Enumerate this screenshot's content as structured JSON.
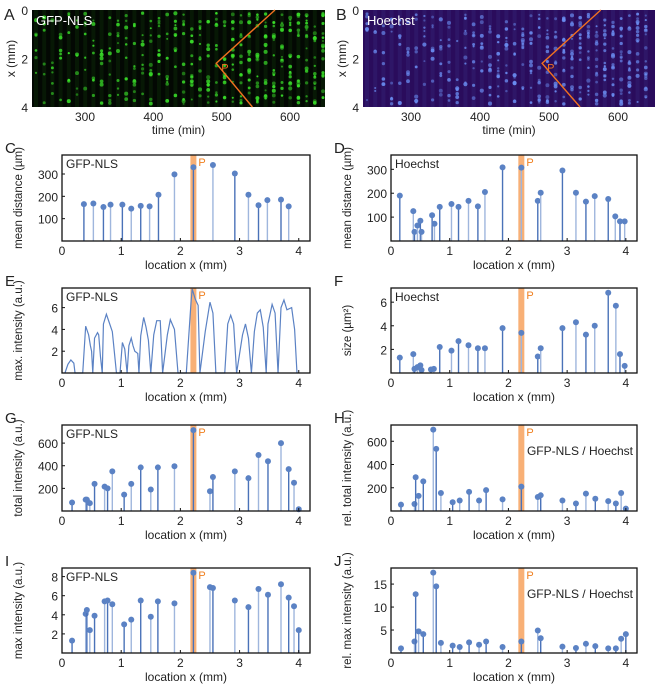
{
  "colors": {
    "stem": "#4a72b8",
    "stem_light": "#9fb6dd",
    "marker": "#5b82c4",
    "p_band": "#f7a25e",
    "p_text": "#f08020",
    "line": "#5b82c4"
  },
  "images": [
    {
      "panel": "A",
      "label": "GFP-NLS",
      "ylabel": "x (mm)",
      "xlabel": "time (min)",
      "xticks": [
        300,
        400,
        500,
        600
      ],
      "yticks": [
        0,
        2,
        4
      ],
      "time_range": [
        222,
        652
      ],
      "x_range": [
        0,
        4
      ],
      "background": "#030803",
      "dot_color": "#3adf2a",
      "p_label": "P",
      "trajectory": [
        [
          578,
          0
        ],
        [
          492,
          2.2
        ],
        [
          545,
          4
        ]
      ]
    },
    {
      "panel": "B",
      "label": "Hoechst",
      "ylabel": "x (mm)",
      "xlabel": "time (min)",
      "xticks": [
        300,
        400,
        500,
        600
      ],
      "yticks": [
        0,
        2,
        4
      ],
      "time_range": [
        228,
        652
      ],
      "x_range": [
        0,
        4
      ],
      "background": "#2a0c5c",
      "dot_color": "#6a8cf0",
      "p_label": "P",
      "trajectory": [
        [
          575,
          0
        ],
        [
          490,
          2.2
        ],
        [
          545,
          4
        ]
      ]
    }
  ],
  "chart_data": [
    {
      "panel": "C",
      "type": "stem",
      "label": "GFP-NLS",
      "ylabel": "mean distance (µm)",
      "xlabel": "location x (mm)",
      "xlim": [
        0,
        4.19
      ],
      "ylim": [
        0,
        385
      ],
      "xticks": [
        0,
        1,
        2,
        3,
        4
      ],
      "yticks": [
        100,
        200,
        300
      ],
      "p_label": "P",
      "p_x": 2.22,
      "x": [
        0.37,
        0.53,
        0.7,
        0.82,
        1.02,
        1.17,
        1.33,
        1.48,
        1.63,
        1.9,
        2.22,
        2.55,
        2.92,
        3.15,
        3.32,
        3.47,
        3.7,
        3.83
      ],
      "y": [
        165,
        168,
        152,
        163,
        163,
        145,
        157,
        155,
        207,
        298,
        330,
        340,
        302,
        207,
        160,
        183,
        185,
        155
      ]
    },
    {
      "panel": "D",
      "type": "stem",
      "label": "Hoechst",
      "ylabel": "mean distance (µm)",
      "xlabel": "location x (mm)",
      "xlim": [
        0,
        4.19
      ],
      "ylim": [
        0,
        360
      ],
      "xticks": [
        0,
        1,
        2,
        3,
        4
      ],
      "yticks": [
        100,
        200,
        300
      ],
      "p_label": "P",
      "p_x": 2.22,
      "x": [
        0.15,
        0.38,
        0.4,
        0.45,
        0.5,
        0.52,
        0.7,
        0.74,
        0.83,
        1.03,
        1.15,
        1.32,
        1.48,
        1.6,
        1.9,
        2.22,
        2.5,
        2.55,
        2.92,
        3.15,
        3.32,
        3.47,
        3.7,
        3.82,
        3.9,
        3.98
      ],
      "y": [
        190,
        125,
        38,
        65,
        85,
        38,
        108,
        72,
        143,
        155,
        143,
        168,
        145,
        205,
        308,
        307,
        168,
        202,
        295,
        202,
        165,
        188,
        176,
        103,
        82,
        82
      ]
    },
    {
      "panel": "E",
      "type": "line",
      "label": "GFP-NLS",
      "ylabel": "max. intensity (a.u.)",
      "xlabel": "location x (mm)",
      "xlim": [
        0,
        4.19
      ],
      "ylim": [
        0,
        7.8
      ],
      "xticks": [
        0,
        1,
        2,
        3,
        4
      ],
      "yticks": [
        2,
        4,
        6
      ],
      "p_label": "P",
      "p_x": 2.22,
      "x": [
        0.05,
        0.1,
        0.15,
        0.2,
        0.22,
        0.35,
        0.4,
        0.45,
        0.48,
        0.5,
        0.52,
        0.55,
        0.6,
        0.62,
        0.65,
        0.68,
        0.7,
        0.75,
        0.8,
        0.85,
        0.92,
        0.98,
        1.02,
        1.06,
        1.1,
        1.13,
        1.17,
        1.2,
        1.23,
        1.28,
        1.3,
        1.33,
        1.38,
        1.42,
        1.46,
        1.5,
        1.55,
        1.6,
        1.66,
        1.7,
        1.78,
        1.83,
        1.9,
        1.96,
        2.1,
        2.18,
        2.2,
        2.25,
        2.3,
        2.33,
        2.42,
        2.5,
        2.55,
        2.6,
        2.75,
        2.8,
        2.85,
        2.9,
        2.95,
        3.05,
        3.1,
        3.15,
        3.2,
        3.25,
        3.3,
        3.35,
        3.4,
        3.45,
        3.48,
        3.55,
        3.6,
        3.65,
        3.7,
        3.75,
        3.8,
        3.88,
        3.93,
        3.97
      ],
      "y": [
        0,
        0.8,
        1.2,
        0.9,
        0,
        0,
        4.3,
        3.5,
        2.5,
        2.0,
        0,
        3.2,
        3.7,
        3.5,
        1.5,
        0,
        4.5,
        5.4,
        4.6,
        3.8,
        0,
        0,
        2.8,
        2.2,
        0,
        2.5,
        3.2,
        2.5,
        2.0,
        1.8,
        0,
        3.4,
        5.1,
        4.2,
        3.0,
        0,
        3.5,
        4.8,
        4.8,
        0,
        3.5,
        4.9,
        4.0,
        0,
        0,
        6.5,
        7.7,
        6.8,
        6.2,
        0,
        3.8,
        6.5,
        5.5,
        0,
        0,
        4.5,
        5.3,
        4.5,
        0,
        3.5,
        4.5,
        3.2,
        0,
        3.8,
        5.5,
        5.8,
        4.2,
        0,
        4.5,
        6.3,
        5.5,
        0,
        6.0,
        6.7,
        5.8,
        6.0,
        4.0,
        0
      ]
    },
    {
      "panel": "F",
      "type": "stem",
      "label": "Hoechst",
      "ylabel": "size (µm²)",
      "xlabel": "location x (mm)",
      "xlim": [
        0,
        4.19
      ],
      "ylim": [
        0,
        7.2
      ],
      "xticks": [
        0,
        1,
        2,
        3,
        4
      ],
      "yticks": [
        2,
        4,
        6
      ],
      "p_label": "P",
      "p_x": 2.22,
      "x": [
        0.15,
        0.38,
        0.4,
        0.45,
        0.5,
        0.52,
        0.68,
        0.73,
        0.83,
        1.03,
        1.15,
        1.32,
        1.48,
        1.6,
        1.9,
        2.22,
        2.5,
        2.55,
        2.92,
        3.15,
        3.32,
        3.47,
        3.7,
        3.83,
        3.9,
        3.98
      ],
      "y": [
        1.3,
        1.6,
        0.35,
        0.5,
        0.65,
        0.25,
        0.3,
        0.35,
        2.2,
        1.9,
        2.7,
        2.35,
        2.1,
        2.1,
        3.8,
        3.4,
        1.4,
        2.1,
        3.8,
        4.3,
        3.25,
        4.0,
        6.8,
        5.7,
        1.6,
        0.6
      ]
    },
    {
      "panel": "G",
      "type": "stem",
      "label": "GFP-NLS",
      "ylabel": "total intensity (a.u.)",
      "xlabel": "location x (mm)",
      "xlim": [
        0,
        4.19
      ],
      "ylim": [
        0,
        760
      ],
      "xticks": [
        0,
        1,
        2,
        3,
        4
      ],
      "yticks": [
        200,
        400,
        600
      ],
      "p_label": "P",
      "p_x": 2.22,
      "x": [
        0.17,
        0.4,
        0.42,
        0.47,
        0.55,
        0.72,
        0.77,
        0.85,
        1.05,
        1.17,
        1.33,
        1.5,
        1.62,
        1.9,
        2.22,
        2.5,
        2.55,
        2.92,
        3.15,
        3.32,
        3.48,
        3.7,
        3.83,
        3.92,
        4.0
      ],
      "y": [
        75,
        100,
        100,
        70,
        240,
        215,
        200,
        350,
        145,
        240,
        385,
        190,
        385,
        395,
        715,
        175,
        300,
        350,
        290,
        495,
        440,
        600,
        370,
        250,
        15
      ]
    },
    {
      "panel": "H",
      "type": "stem",
      "label": "GFP-NLS / Hoechst",
      "ylabel": "rel. total intensity (a.u.)",
      "xlabel": "location x (mm)",
      "xlim": [
        0,
        4.19
      ],
      "ylim": [
        0,
        740
      ],
      "xticks": [
        0,
        1,
        2,
        3,
        4
      ],
      "yticks": [
        200,
        400,
        600
      ],
      "p_label": "P",
      "p_x": 2.22,
      "x": [
        0.17,
        0.4,
        0.42,
        0.47,
        0.55,
        0.72,
        0.77,
        0.85,
        1.05,
        1.17,
        1.33,
        1.5,
        1.62,
        1.9,
        2.22,
        2.5,
        2.55,
        2.92,
        3.15,
        3.32,
        3.48,
        3.7,
        3.83,
        3.92,
        4.0
      ],
      "y": [
        55,
        60,
        290,
        130,
        255,
        700,
        535,
        155,
        75,
        90,
        165,
        90,
        180,
        100,
        210,
        120,
        135,
        90,
        65,
        150,
        105,
        85,
        65,
        155,
        20
      ]
    },
    {
      "panel": "I",
      "type": "stem",
      "label": "GFP-NLS",
      "ylabel": "max intensity (a.u.)",
      "xlabel": "location x (mm)",
      "xlim": [
        0,
        4.19
      ],
      "ylim": [
        0,
        8.9
      ],
      "xticks": [
        0,
        1,
        2,
        3,
        4
      ],
      "yticks": [
        2,
        4,
        6,
        8
      ],
      "p_label": "P",
      "p_x": 2.22,
      "x": [
        0.17,
        0.4,
        0.42,
        0.47,
        0.55,
        0.72,
        0.77,
        0.85,
        1.05,
        1.17,
        1.33,
        1.5,
        1.62,
        1.9,
        2.22,
        2.5,
        2.55,
        2.92,
        3.15,
        3.32,
        3.48,
        3.7,
        3.83,
        3.92,
        4.0
      ],
      "y": [
        1.3,
        4.1,
        4.5,
        2.4,
        3.9,
        5.4,
        5.5,
        5.1,
        3.0,
        3.5,
        5.5,
        3.8,
        5.4,
        5.2,
        8.4,
        6.9,
        6.8,
        5.5,
        4.8,
        6.7,
        6.1,
        7.2,
        5.8,
        4.9,
        2.4
      ]
    },
    {
      "panel": "J",
      "type": "stem",
      "label": "GFP-NLS / Hoechst",
      "ylabel": "rel. max intensity (a.u.)",
      "xlabel": "location x (mm)",
      "xlim": [
        0,
        4.19
      ],
      "ylim": [
        0,
        18.5
      ],
      "xticks": [
        0,
        1,
        2,
        3,
        4
      ],
      "yticks": [
        5,
        10,
        15
      ],
      "p_label": "P",
      "p_x": 2.22,
      "x": [
        0.17,
        0.4,
        0.42,
        0.47,
        0.55,
        0.72,
        0.77,
        0.85,
        1.05,
        1.17,
        1.33,
        1.5,
        1.62,
        1.9,
        2.22,
        2.5,
        2.55,
        2.92,
        3.15,
        3.32,
        3.48,
        3.7,
        3.83,
        3.92,
        4.0
      ],
      "y": [
        1.0,
        2.5,
        12.8,
        4.7,
        4.1,
        17.5,
        14.5,
        2.2,
        1.6,
        1.3,
        2.3,
        1.8,
        2.5,
        1.3,
        2.5,
        4.9,
        3.2,
        1.4,
        1.1,
        2.0,
        1.5,
        1.0,
        1.0,
        3.1,
        4.1
      ]
    }
  ]
}
